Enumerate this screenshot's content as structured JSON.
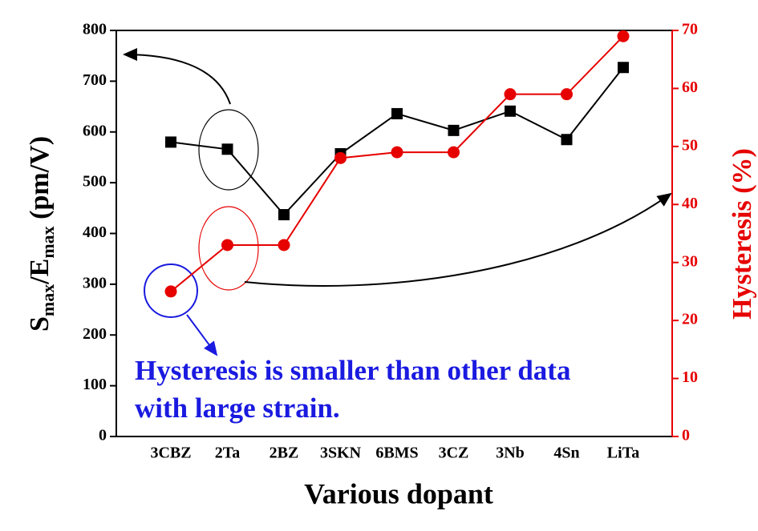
{
  "chart_data": {
    "type": "line",
    "categories": [
      "3CBZ",
      "2Ta",
      "2BZ",
      "3SKN",
      "6BMS",
      "3CZ",
      "3Nb",
      "4Sn",
      "LiTa"
    ],
    "x_label": "Various dopant",
    "y_label_parts": [
      "S",
      "max",
      "/E",
      "max",
      " (pm/V)"
    ],
    "y2_label": "Hysteresis (%)",
    "series": [
      {
        "color": "#000000",
        "marker": "square",
        "values": [
          580,
          566,
          437,
          557,
          636,
          603,
          641,
          585,
          727
        ]
      },
      {
        "color": "#e60000",
        "marker": "circle",
        "axis": "y2",
        "values": [
          25,
          33,
          33,
          48,
          49,
          49,
          59,
          59,
          69
        ]
      }
    ],
    "ylim": [
      0,
      800
    ],
    "yticks": [
      0,
      100,
      200,
      300,
      400,
      500,
      600,
      700,
      800
    ],
    "y2lim": [
      0,
      70
    ],
    "y2ticks": [
      0,
      10,
      20,
      30,
      40,
      50,
      60,
      70
    ],
    "annotation_lines": [
      "Hysteresis is smaller than other data",
      "with large strain."
    ],
    "annotation_color": "#1a1ae0"
  }
}
